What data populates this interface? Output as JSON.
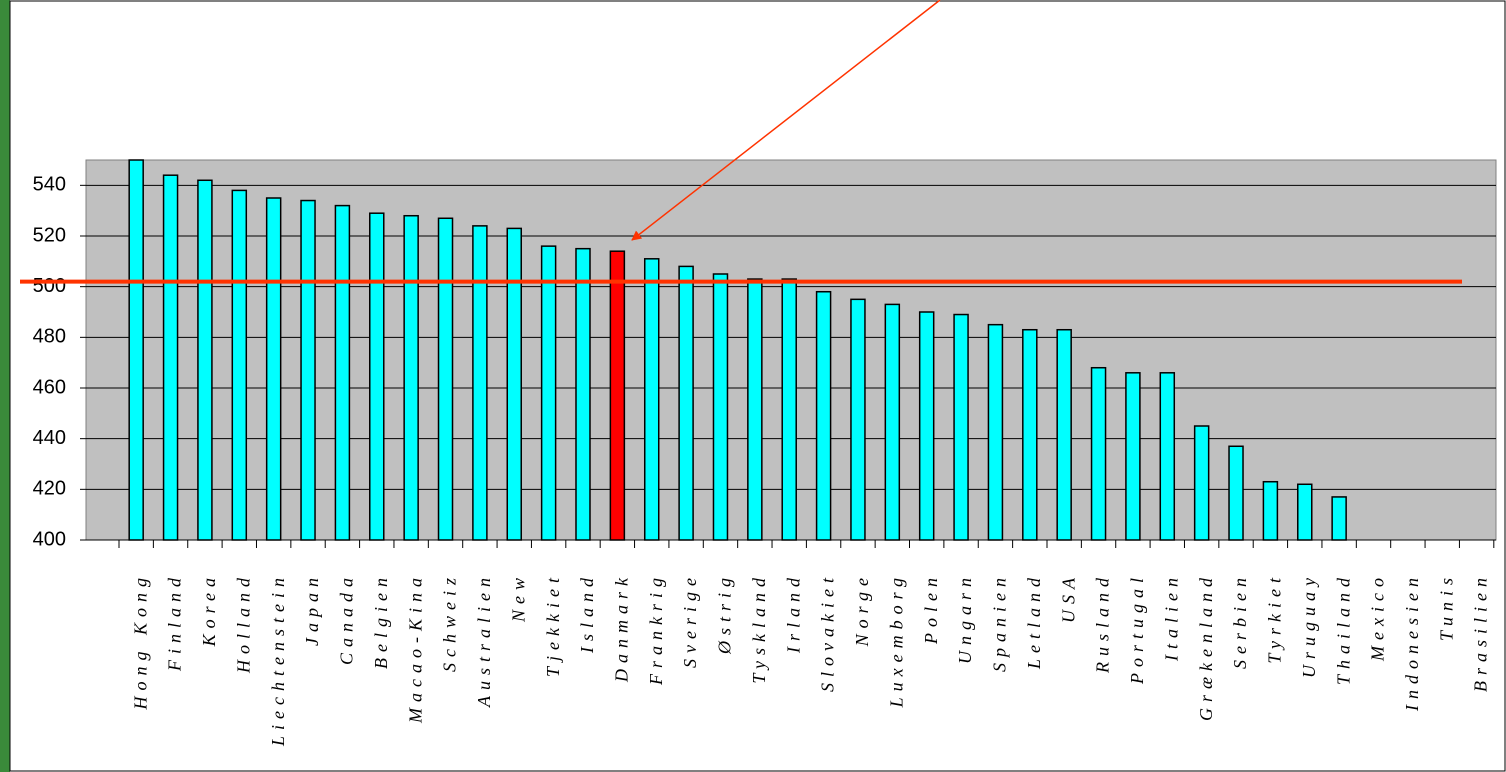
{
  "chart_data": {
    "type": "bar",
    "categories": [
      "Hong Kong",
      "Finland",
      "Korea",
      "Holland",
      "Liechtenstein",
      "Japan",
      "Canada",
      "Belgien",
      "Macao-Kina",
      "Schweiz",
      "Australien",
      "New",
      "Tjekkiet",
      "Island",
      "Danmark",
      "Frankrig",
      "Sverige",
      "Østrig",
      "Tyskland",
      "Irland",
      "Slovakiet",
      "Norge",
      "Luxemborg",
      "Polen",
      "Ungarn",
      "Spanien",
      "Letland",
      "USA",
      "Rusland",
      "Portugal",
      "Italien",
      "Grækenland",
      "Serbien",
      "Tyrkiet",
      "Uruguay",
      "Thailand",
      "Mexico",
      "Indonesien",
      "Tunis",
      "Brasilien"
    ],
    "values": [
      550,
      544,
      542,
      538,
      535,
      534,
      532,
      529,
      528,
      527,
      524,
      523,
      516,
      515,
      514,
      511,
      508,
      505,
      503,
      503,
      498,
      495,
      493,
      490,
      489,
      485,
      483,
      483,
      468,
      466,
      466,
      445,
      437,
      423,
      422,
      417,
      null,
      null,
      null,
      null
    ],
    "color": "#00ffff",
    "highlight_category": "Danmark",
    "highlight_color": "#ff0000",
    "reference_line": 502,
    "reference_color": "#ff3300",
    "ylim": [
      400,
      550
    ],
    "yticks": [
      400,
      420,
      440,
      460,
      480,
      500,
      520,
      540
    ],
    "grid": true
  }
}
